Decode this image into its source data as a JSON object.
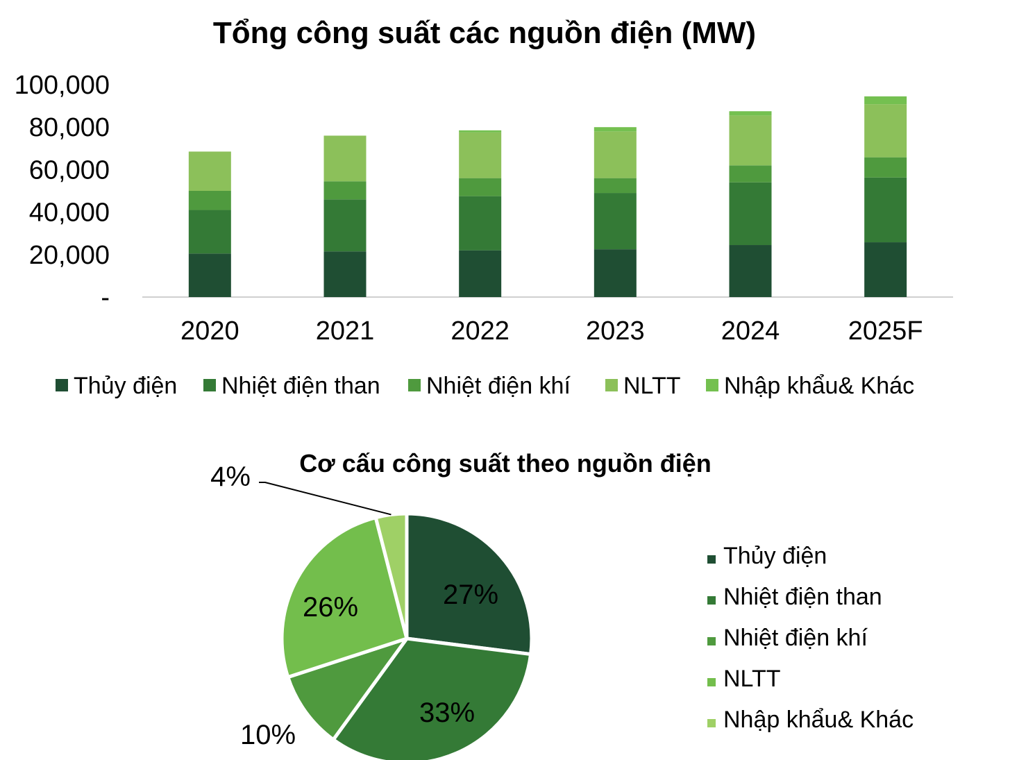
{
  "colors": {
    "thuy_dien": "#1f4e33",
    "nhiet_dien_than": "#347a36",
    "nhiet_dien_khi": "#4f9a3e",
    "nltt": "#8cc05a",
    "nhap_khau": "#74c050",
    "pie_nltt": "#73be4c",
    "pie_nhap_khau": "#9fd066",
    "axis": "#d0d0d0"
  },
  "chart_data": [
    {
      "type": "bar",
      "stacked": true,
      "title": "Tổng công suất các nguồn điện (MW)",
      "categories": [
        "2020",
        "2021",
        "2022",
        "2023",
        "2024",
        "2025F"
      ],
      "series": [
        {
          "name": "Thủy điện",
          "color_key": "thuy_dien",
          "values": [
            20500,
            21500,
            22000,
            22500,
            24500,
            25800
          ]
        },
        {
          "name": "Nhiệt điện than",
          "color_key": "nhiet_dien_than",
          "values": [
            20500,
            24500,
            25500,
            26500,
            29500,
            30500
          ]
        },
        {
          "name": "Nhiệt điện khí",
          "color_key": "nhiet_dien_khi",
          "values": [
            9000,
            8500,
            8500,
            7000,
            8000,
            9500
          ]
        },
        {
          "name": "NLTT",
          "color_key": "nltt",
          "values": [
            18500,
            21500,
            21500,
            22000,
            23500,
            25000
          ]
        },
        {
          "name": "Nhập khẩu& Khác",
          "color_key": "nhap_khau",
          "values": [
            0,
            0,
            1000,
            2000,
            2000,
            3700
          ]
        }
      ],
      "y_ticks": [
        "-",
        "20,000",
        "40,000",
        "60,000",
        "80,000",
        "100,000"
      ],
      "ylim": [
        0,
        100000
      ],
      "grid": false,
      "legend_position": "bottom"
    },
    {
      "type": "pie",
      "title": "Cơ cấu công suất theo nguồn điện",
      "slices": [
        {
          "name": "Thủy điện",
          "value": 27,
          "label": "27%",
          "color_key": "thuy_dien"
        },
        {
          "name": "Nhiệt điện than",
          "value": 33,
          "label": "33%",
          "color_key": "nhiet_dien_than"
        },
        {
          "name": "Nhiệt điện khí",
          "value": 10,
          "label": "10%",
          "color_key": "nhiet_dien_khi"
        },
        {
          "name": "NLTT",
          "value": 26,
          "label": "26%",
          "color_key": "pie_nltt"
        },
        {
          "name": "Nhập khẩu& Khác",
          "value": 4,
          "label": "4%",
          "color_key": "pie_nhap_khau"
        }
      ],
      "legend_position": "right"
    }
  ]
}
